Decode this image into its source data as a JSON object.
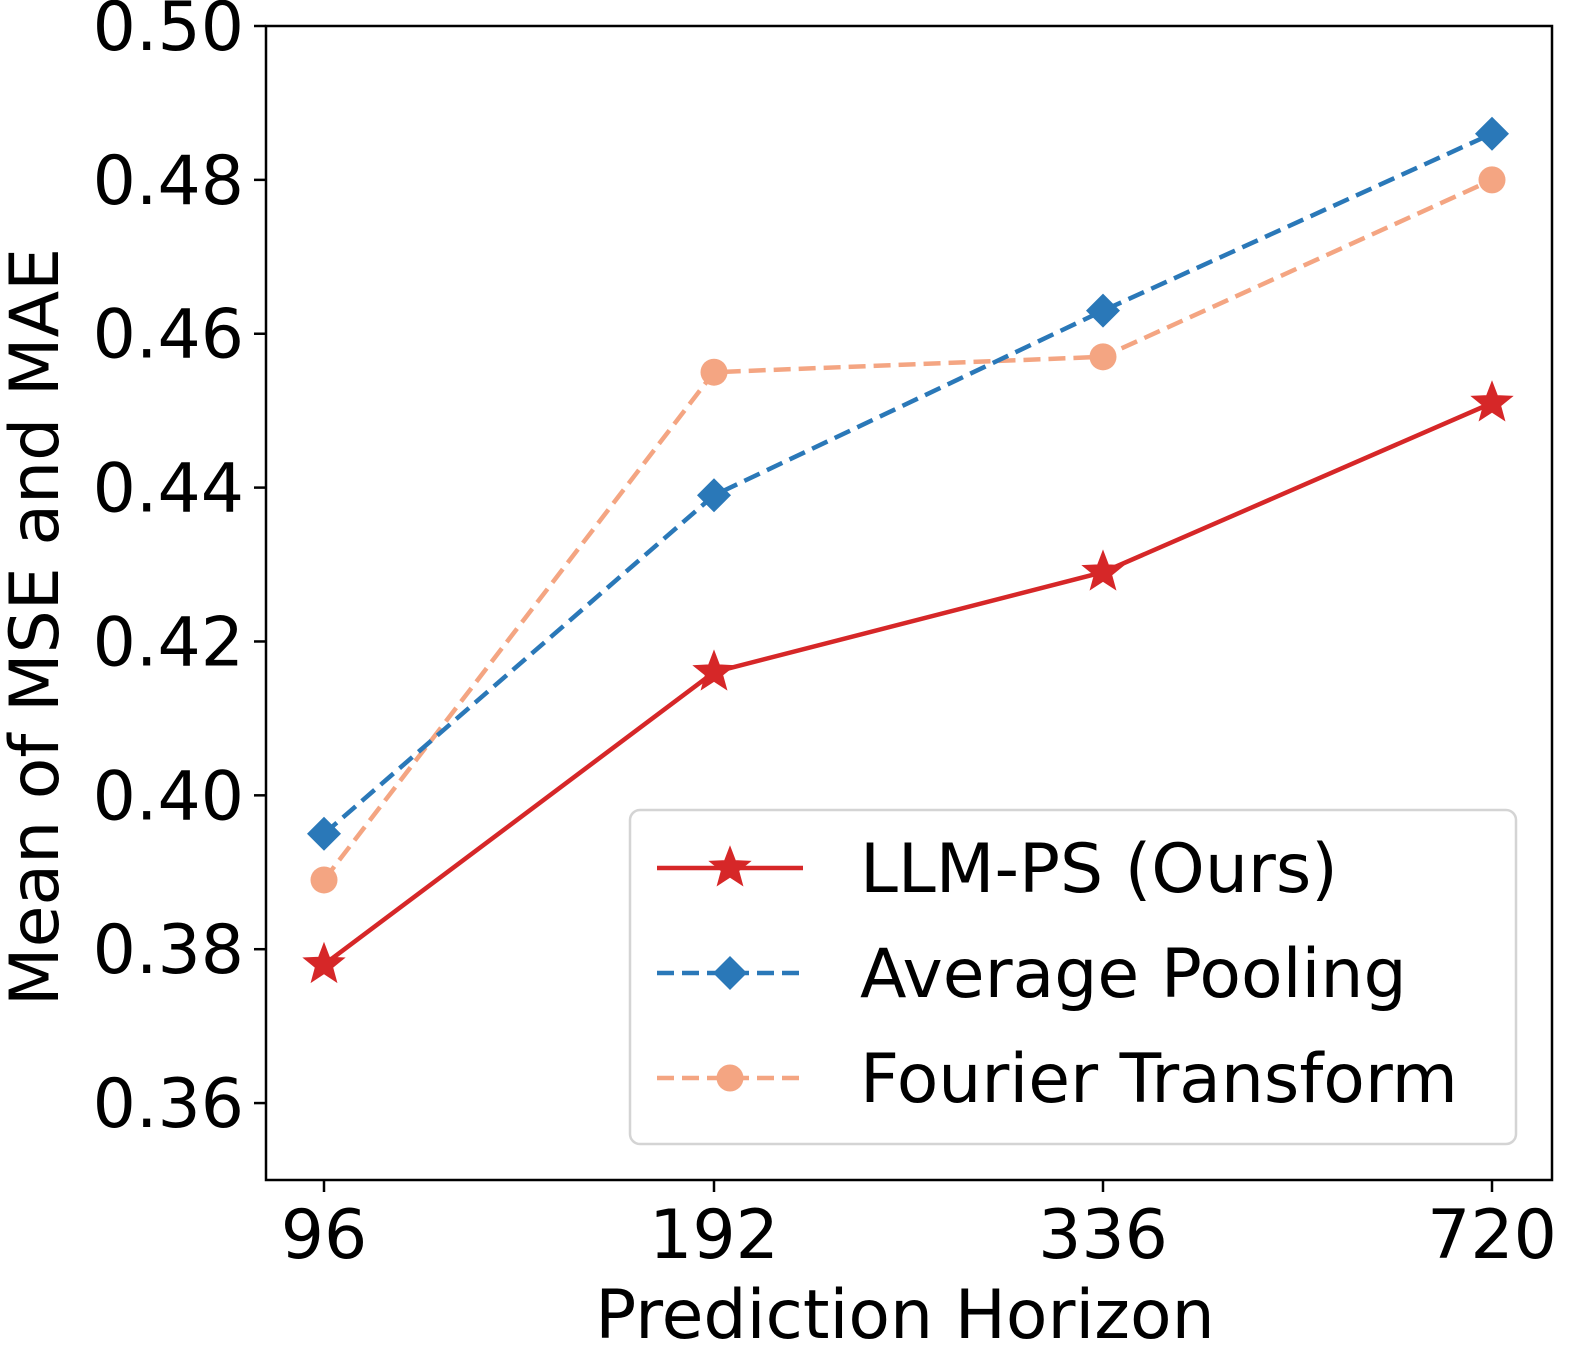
{
  "chart_data": {
    "type": "line",
    "title": "",
    "xlabel": "Prediction Horizon",
    "ylabel": "Mean of MSE and MAE",
    "categories": [
      "96",
      "192",
      "336",
      "720"
    ],
    "ylim": [
      0.35,
      0.5
    ],
    "yticks": [
      "0.36",
      "0.38",
      "0.40",
      "0.42",
      "0.44",
      "0.46",
      "0.48",
      "0.50"
    ],
    "yticks_values": [
      0.36,
      0.38,
      0.4,
      0.42,
      0.44,
      0.46,
      0.48,
      0.5
    ],
    "grid": false,
    "legend_position": "bottom-right",
    "series": [
      {
        "name": "LLM-PS (Ours)",
        "values": [
          0.378,
          0.416,
          0.429,
          0.451
        ],
        "color": "#d62728",
        "marker": "star",
        "line_style": "solid"
      },
      {
        "name": "Average Pooling",
        "values": [
          0.395,
          0.439,
          0.463,
          0.486
        ],
        "color": "#2a78b8",
        "marker": "diamond",
        "line_style": "dashed"
      },
      {
        "name": "Fourier Transform",
        "values": [
          0.389,
          0.455,
          0.457,
          0.48
        ],
        "color": "#f4a582",
        "marker": "circle",
        "line_style": "dashed"
      }
    ]
  }
}
